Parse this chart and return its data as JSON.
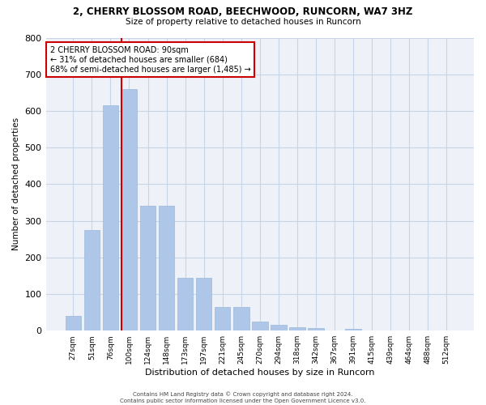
{
  "title1": "2, CHERRY BLOSSOM ROAD, BEECHWOOD, RUNCORN, WA7 3HZ",
  "title2": "Size of property relative to detached houses in Runcorn",
  "xlabel": "Distribution of detached houses by size in Runcorn",
  "ylabel": "Number of detached properties",
  "categories": [
    "27sqm",
    "51sqm",
    "76sqm",
    "100sqm",
    "124sqm",
    "148sqm",
    "173sqm",
    "197sqm",
    "221sqm",
    "245sqm",
    "270sqm",
    "294sqm",
    "318sqm",
    "342sqm",
    "367sqm",
    "391sqm",
    "415sqm",
    "439sqm",
    "464sqm",
    "488sqm",
    "512sqm"
  ],
  "values": [
    40,
    275,
    615,
    660,
    340,
    340,
    145,
    145,
    65,
    65,
    25,
    15,
    10,
    8,
    0,
    5,
    0,
    0,
    0,
    0,
    0
  ],
  "bar_color": "#aec6e8",
  "bar_edge_color": "#9ab8d8",
  "grid_color": "#c8d4e8",
  "background_color": "#eef2f8",
  "annotation_text": "2 CHERRY BLOSSOM ROAD: 90sqm\n← 31% of detached houses are smaller (684)\n68% of semi-detached houses are larger (1,485) →",
  "annotation_box_color": "#ffffff",
  "annotation_border_color": "#cc0000",
  "footer": "Contains HM Land Registry data © Crown copyright and database right 2024.\nContains public sector information licensed under the Open Government Licence v3.0.",
  "ylim": [
    0,
    800
  ],
  "yticks": [
    0,
    100,
    200,
    300,
    400,
    500,
    600,
    700,
    800
  ]
}
